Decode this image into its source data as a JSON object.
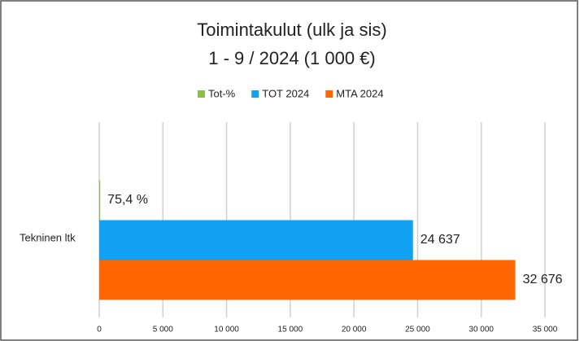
{
  "chart_data": {
    "type": "hbar",
    "title": [
      "Toimintakulut (ulk ja sis)",
      "1 - 9 / 2024 (1 000 €)"
    ],
    "categories": [
      "Tekninen ltk"
    ],
    "series": [
      {
        "name": "Tot-%",
        "color": "#8cbd4a",
        "values": [
          75.4
        ],
        "value_labels": [
          "75,4 %"
        ]
      },
      {
        "name": "TOT 2024",
        "color": "#12a0f2",
        "values": [
          24637
        ],
        "value_labels": [
          "24 637"
        ]
      },
      {
        "name": "MTA 2024",
        "color": "#ff6600",
        "values": [
          32676
        ],
        "value_labels": [
          "32 676"
        ]
      }
    ],
    "xlim": [
      0,
      35000
    ],
    "xticks": [
      0,
      {
        "value": 5000,
        "label": "5 000"
      },
      {
        "value": 10000,
        "label": "10 000"
      },
      {
        "value": 15000,
        "label": "15 000"
      },
      {
        "value": 20000,
        "label": "20 000"
      },
      {
        "value": 25000,
        "label": "25 000"
      },
      {
        "value": 30000,
        "label": "30 000"
      },
      {
        "value": 35000,
        "label": "35 000"
      }
    ],
    "grid": true,
    "legend": "top"
  }
}
